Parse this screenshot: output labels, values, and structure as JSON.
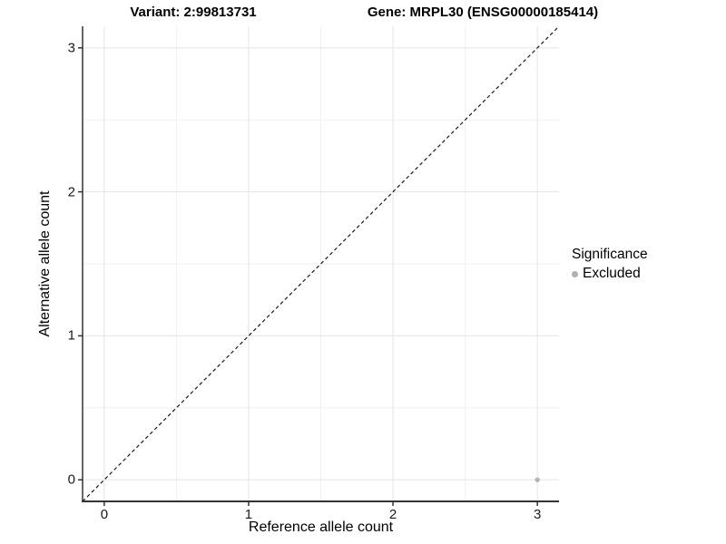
{
  "header": {
    "variant_title": "Variant: 2:99813731",
    "gene_title": "Gene: MRPL30 (ENSG00000185414)"
  },
  "chart_data": {
    "type": "scatter",
    "xlabel": "Reference allele count",
    "ylabel": "Alternative allele count",
    "xlim": [
      -0.15,
      3.15
    ],
    "ylim": [
      -0.15,
      3.15
    ],
    "x_ticks": [
      "0",
      "1",
      "2",
      "3"
    ],
    "x_tick_values": [
      0,
      1,
      2,
      3
    ],
    "y_ticks": [
      "0",
      "1",
      "2",
      "3"
    ],
    "y_tick_values": [
      0,
      1,
      2,
      3
    ],
    "minor_tick_values": [
      0.5,
      1.5,
      2.5
    ],
    "grid": true,
    "identity_line": {
      "style": "dashed",
      "from": [
        -0.15,
        -0.15
      ],
      "to": [
        3.15,
        3.15
      ],
      "color": "#1a1a1a"
    },
    "series": [
      {
        "name": "Excluded",
        "color": "#b5b5b5",
        "points": [
          {
            "x": 3,
            "y": 0
          }
        ]
      }
    ],
    "legend": {
      "title": "Significance",
      "position": "right",
      "items": [
        {
          "label": "Excluded",
          "color": "#b0b0b0",
          "marker": "dot"
        }
      ]
    },
    "colors": {
      "background": "#ffffff",
      "grid_major": "#e4e4e4",
      "grid_minor": "#f1f1f1",
      "axis_line": "#333333",
      "tick_mark": "#333333",
      "point": "#b5b5b5"
    }
  }
}
